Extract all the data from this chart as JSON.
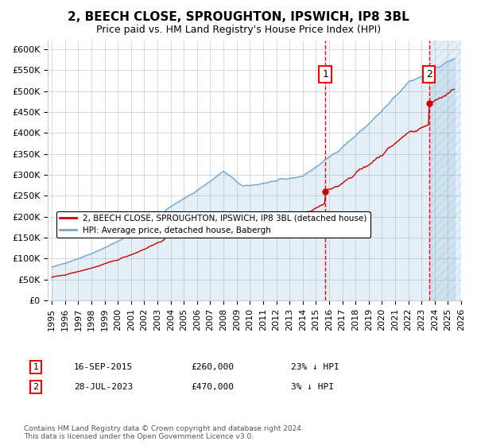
{
  "title": "2, BEECH CLOSE, SPROUGHTON, IPSWICH, IP8 3BL",
  "subtitle": "Price paid vs. HM Land Registry's House Price Index (HPI)",
  "ylim": [
    0,
    620000
  ],
  "yticks": [
    0,
    50000,
    100000,
    150000,
    200000,
    250000,
    300000,
    350000,
    400000,
    450000,
    500000,
    550000,
    600000
  ],
  "ytick_labels": [
    "£0",
    "£50K",
    "£100K",
    "£150K",
    "£200K",
    "£250K",
    "£300K",
    "£350K",
    "£400K",
    "£450K",
    "£500K",
    "£550K",
    "£600K"
  ],
  "x_start_year": 1995,
  "x_end_year": 2026,
  "hpi_color": "#6fa8d4",
  "property_color": "#cc0000",
  "sale1_date": 2015.71,
  "sale1_price": 260000,
  "sale2_date": 2023.57,
  "sale2_price": 470000,
  "legend_property": "2, BEECH CLOSE, SPROUGHTON, IPSWICH, IP8 3BL (detached house)",
  "legend_hpi": "HPI: Average price, detached house, Babergh",
  "annotation1_date": "16-SEP-2015",
  "annotation1_price": "£260,000",
  "annotation1_hpi": "23% ↓ HPI",
  "annotation2_date": "28-JUL-2023",
  "annotation2_price": "£470,000",
  "annotation2_hpi": "3% ↓ HPI",
  "footer": "Contains HM Land Registry data © Crown copyright and database right 2024.\nThis data is licensed under the Open Government Licence v3.0.",
  "grid_color": "#cccccc",
  "title_fontsize": 11,
  "subtitle_fontsize": 9,
  "tick_fontsize": 8
}
